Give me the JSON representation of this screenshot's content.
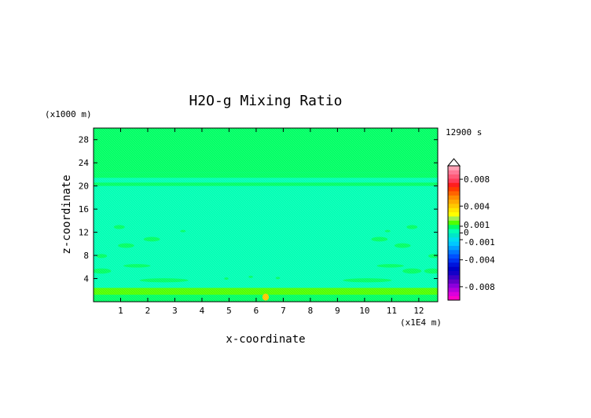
{
  "chart_data": {
    "type": "heatmap",
    "title": "H2O-g Mixing Ratio",
    "xlabel": "x-coordinate",
    "ylabel": "z-coordinate",
    "x_unit": "(x1E4 m)",
    "y_unit": "(x1000 m)",
    "time_label": "12900 s",
    "xlim": [
      0,
      12.7
    ],
    "ylim": [
      0,
      30
    ],
    "x_ticks": [
      1,
      2,
      3,
      4,
      5,
      6,
      7,
      8,
      9,
      10,
      11,
      12
    ],
    "y_ticks": [
      4,
      8,
      12,
      16,
      20,
      24,
      28
    ],
    "background_value": 0.0003,
    "bands": [
      {
        "z0": 0.0,
        "z1": 1.2,
        "value": 0.0007
      },
      {
        "z0": 1.2,
        "z1": 2.4,
        "value": 0.00135
      },
      {
        "z0": 2.4,
        "z1": 20.0,
        "value": 0.0003
      },
      {
        "z0": 20.0,
        "z1": 20.6,
        "value": 0.0007
      },
      {
        "z0": 20.6,
        "z1": 21.4,
        "value": 0.0003
      },
      {
        "z0": 21.4,
        "z1": 22.3,
        "value": 0.0007
      },
      {
        "z0": 22.3,
        "z1": 30.0,
        "value": 0.0007
      }
    ],
    "features": [
      {
        "x": 0.3,
        "z": 5.3,
        "rx": 0.35,
        "rz": 0.45,
        "value": 0.0007
      },
      {
        "x": 0.3,
        "z": 7.9,
        "rx": 0.2,
        "rz": 0.35,
        "value": 0.0007
      },
      {
        "x": 1.2,
        "z": 9.7,
        "rx": 0.3,
        "rz": 0.4,
        "value": 0.0007
      },
      {
        "x": 0.95,
        "z": 12.9,
        "rx": 0.2,
        "rz": 0.35,
        "value": 0.0007
      },
      {
        "x": 1.6,
        "z": 6.2,
        "rx": 0.5,
        "rz": 0.3,
        "value": 0.0007
      },
      {
        "x": 2.15,
        "z": 10.8,
        "rx": 0.3,
        "rz": 0.4,
        "value": 0.0007
      },
      {
        "x": 2.6,
        "z": 3.7,
        "rx": 0.9,
        "rz": 0.35,
        "value": 0.0007
      },
      {
        "x": 3.3,
        "z": 12.2,
        "rx": 0.1,
        "rz": 0.2,
        "value": 0.0007
      },
      {
        "x": 4.9,
        "z": 4.0,
        "rx": 0.08,
        "rz": 0.2,
        "value": 0.0007
      },
      {
        "x": 5.8,
        "z": 4.3,
        "rx": 0.08,
        "rz": 0.2,
        "value": 0.0007
      },
      {
        "x": 6.8,
        "z": 4.1,
        "rx": 0.08,
        "rz": 0.2,
        "value": 0.0007
      },
      {
        "x": 6.35,
        "z": 0.8,
        "rx": 0.12,
        "rz": 0.6,
        "value": 0.004
      },
      {
        "x": 11.75,
        "z": 5.3,
        "rx": 0.35,
        "rz": 0.45,
        "value": 0.0007
      },
      {
        "x": 12.5,
        "z": 5.3,
        "rx": 0.3,
        "rz": 0.45,
        "value": 0.0007
      },
      {
        "x": 12.55,
        "z": 7.9,
        "rx": 0.2,
        "rz": 0.35,
        "value": 0.0007
      },
      {
        "x": 11.4,
        "z": 9.7,
        "rx": 0.3,
        "rz": 0.4,
        "value": 0.0007
      },
      {
        "x": 11.75,
        "z": 12.9,
        "rx": 0.2,
        "rz": 0.35,
        "value": 0.0007
      },
      {
        "x": 10.95,
        "z": 6.2,
        "rx": 0.5,
        "rz": 0.3,
        "value": 0.0007
      },
      {
        "x": 10.55,
        "z": 10.8,
        "rx": 0.3,
        "rz": 0.4,
        "value": 0.0007
      },
      {
        "x": 10.1,
        "z": 3.7,
        "rx": 0.9,
        "rz": 0.35,
        "value": 0.0007
      },
      {
        "x": 10.85,
        "z": 12.2,
        "rx": 0.1,
        "rz": 0.2,
        "value": 0.0007
      }
    ],
    "colorbar": {
      "labels": [
        "0.008",
        "0.004",
        "0.001",
        "0",
        "-0.001",
        "-0.004",
        "-0.008"
      ],
      "label_values": [
        0.008,
        0.004,
        0.001,
        0,
        -0.001,
        -0.004,
        -0.008
      ],
      "vmin": -0.01,
      "vmax": 0.01,
      "colors": [
        "#ff00c8",
        "#dc00dc",
        "#b400dc",
        "#8c00dc",
        "#6400c8",
        "#3c00c8",
        "#1400c8",
        "#0000c8",
        "#0014dc",
        "#0032f0",
        "#0050ff",
        "#0078ff",
        "#00a0ff",
        "#00c8ff",
        "#00dcf0",
        "#00e6c8",
        "#00ffb4",
        "#00ff64",
        "#50ff00",
        "#a0f050",
        "#ffff00",
        "#ffe600",
        "#ffc800",
        "#ffaa00",
        "#ff8c00",
        "#ff6400",
        "#ff3c00",
        "#ff1e1e",
        "#ff3c5a",
        "#ff5a78",
        "#ff7896",
        "#ffa0b4"
      ]
    }
  }
}
